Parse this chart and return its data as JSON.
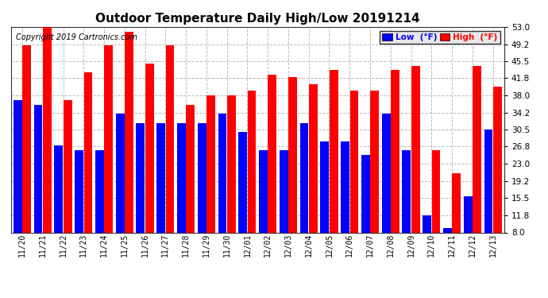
{
  "title": "Outdoor Temperature Daily High/Low 20191214",
  "copyright": "Copyright 2019 Cartronics.com",
  "dates": [
    "11/20",
    "11/21",
    "11/22",
    "11/23",
    "11/24",
    "11/25",
    "11/26",
    "11/27",
    "11/28",
    "11/29",
    "11/30",
    "12/01",
    "12/02",
    "12/03",
    "12/04",
    "12/05",
    "12/06",
    "12/07",
    "12/08",
    "12/09",
    "12/10",
    "12/11",
    "12/12",
    "12/13"
  ],
  "low": [
    37.0,
    36.0,
    27.0,
    26.0,
    26.0,
    34.0,
    32.0,
    32.0,
    32.0,
    32.0,
    34.0,
    30.0,
    26.0,
    26.0,
    32.0,
    28.0,
    28.0,
    25.0,
    34.0,
    26.0,
    11.8,
    9.0,
    16.0,
    30.5
  ],
  "high": [
    49.0,
    53.0,
    37.0,
    43.0,
    49.0,
    52.0,
    45.0,
    49.0,
    36.0,
    38.0,
    38.0,
    39.0,
    42.5,
    42.0,
    40.5,
    43.5,
    39.0,
    39.0,
    43.5,
    44.5,
    26.0,
    21.0,
    44.5,
    40.0
  ],
  "low_color": "#0000ff",
  "high_color": "#ff0000",
  "bg_color": "#ffffff",
  "grid_color": "#bbbbbb",
  "ymin": 8.0,
  "ymax": 53.0,
  "yticks": [
    8.0,
    11.8,
    15.5,
    19.2,
    23.0,
    26.8,
    30.5,
    34.2,
    38.0,
    41.8,
    45.5,
    49.2,
    53.0
  ],
  "title_fontsize": 11,
  "copyright_fontsize": 7,
  "legend_low_label": "Low  (°F)",
  "legend_high_label": "High  (°F)"
}
